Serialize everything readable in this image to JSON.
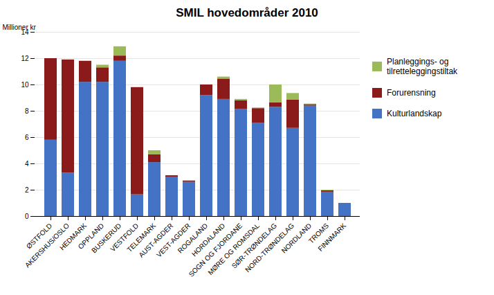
{
  "chart_data": {
    "type": "bar",
    "stacked": true,
    "title": "SMIL hovedområder 2010",
    "ylabel": "Millioner kr",
    "categories": [
      "ØSTFOLD",
      "AKERSHUS/OSLO",
      "HEDMARK",
      "OPPLAND",
      "BUSKERUD",
      "VESTFOLD",
      "TELEMARK",
      "AUST-AGDER",
      "VEST-AGDER",
      "ROGALAND",
      "HORDALAND",
      "SOGN OG FJORDANE",
      "MØRE OG ROMSDAL",
      "SØR-TRØNDELAG",
      "NORD-TRØNDELAG",
      "NORDLAND",
      "TROMS",
      "FINNMARK"
    ],
    "series": [
      {
        "name": "Kulturlandskap",
        "color": "#4472C4",
        "values": [
          5.8,
          3.3,
          10.2,
          10.2,
          11.8,
          1.65,
          4.1,
          3.0,
          2.6,
          9.2,
          8.9,
          8.15,
          7.1,
          8.3,
          6.7,
          8.4,
          1.85,
          1.0
        ]
      },
      {
        "name": "Forurensning",
        "color": "#8B1A1A",
        "values": [
          6.2,
          8.6,
          1.6,
          1.1,
          0.4,
          8.15,
          0.6,
          0.1,
          0.1,
          0.8,
          1.55,
          0.65,
          1.1,
          0.35,
          2.15,
          0.1,
          0.1,
          0.0
        ]
      },
      {
        "name": "Planleggings- og\ntilretteleggingstiltak",
        "color": "#9BBB59",
        "values": [
          0.0,
          0.0,
          0.0,
          0.2,
          0.7,
          0.0,
          0.3,
          0.0,
          0.0,
          0.0,
          0.15,
          0.1,
          0.05,
          1.35,
          0.5,
          0.05,
          0.05,
          0.0
        ]
      }
    ],
    "ylim": [
      0,
      14
    ],
    "yticks": [
      0,
      2,
      4,
      6,
      8,
      10,
      12,
      14
    ],
    "grid": true,
    "legend": "right"
  }
}
